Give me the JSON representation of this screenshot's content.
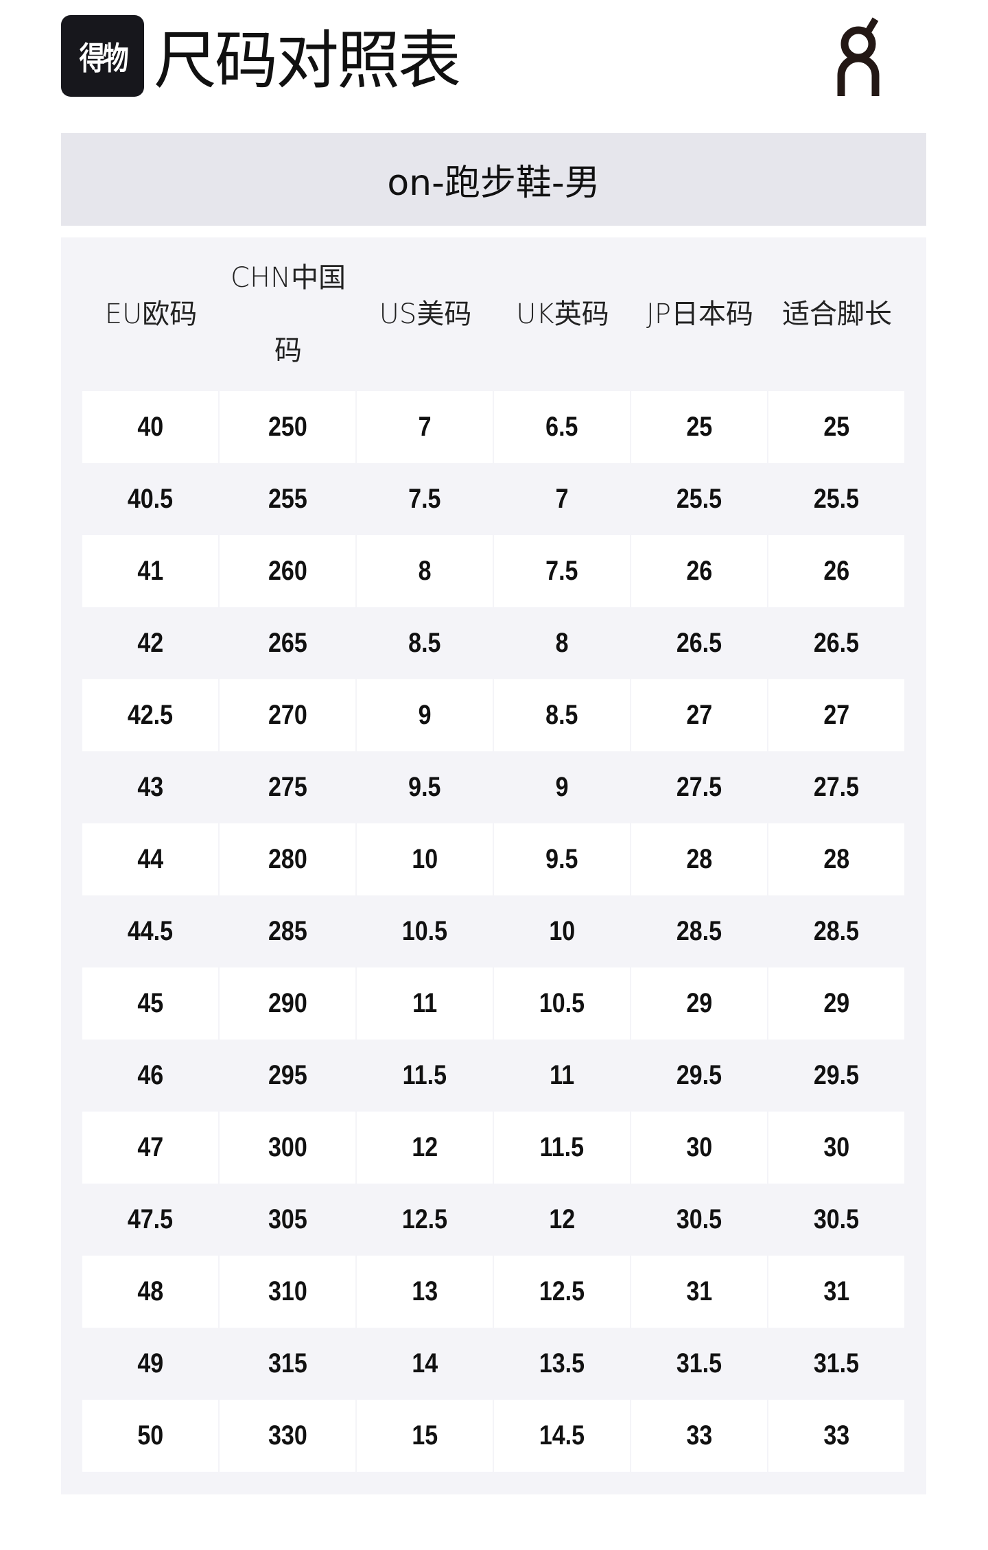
{
  "header": {
    "brand_logo_text": "得物",
    "title": "尺码对照表",
    "partner_logo_text": "on"
  },
  "subtitle": "on-跑步鞋-男",
  "colors": {
    "title_bar": "#e6e6ec",
    "panel": "#f4f4f8",
    "row_highlight": "#ffffff",
    "logo_bg": "#17171c"
  },
  "table": {
    "columns": [
      "EU欧码",
      "CHN中国码",
      "US美码",
      "UK英码",
      "JP日本码",
      "适合脚长"
    ],
    "rows": [
      [
        "40",
        "250",
        "7",
        "6.5",
        "25",
        "25"
      ],
      [
        "40.5",
        "255",
        "7.5",
        "7",
        "25.5",
        "25.5"
      ],
      [
        "41",
        "260",
        "8",
        "7.5",
        "26",
        "26"
      ],
      [
        "42",
        "265",
        "8.5",
        "8",
        "26.5",
        "26.5"
      ],
      [
        "42.5",
        "270",
        "9",
        "8.5",
        "27",
        "27"
      ],
      [
        "43",
        "275",
        "9.5",
        "9",
        "27.5",
        "27.5"
      ],
      [
        "44",
        "280",
        "10",
        "9.5",
        "28",
        "28"
      ],
      [
        "44.5",
        "285",
        "10.5",
        "10",
        "28.5",
        "28.5"
      ],
      [
        "45",
        "290",
        "11",
        "10.5",
        "29",
        "29"
      ],
      [
        "46",
        "295",
        "11.5",
        "11",
        "29.5",
        "29.5"
      ],
      [
        "47",
        "300",
        "12",
        "11.5",
        "30",
        "30"
      ],
      [
        "47.5",
        "305",
        "12.5",
        "12",
        "30.5",
        "30.5"
      ],
      [
        "48",
        "310",
        "13",
        "12.5",
        "31",
        "31"
      ],
      [
        "49",
        "315",
        "14",
        "13.5",
        "31.5",
        "31.5"
      ],
      [
        "50",
        "330",
        "15",
        "14.5",
        "33",
        "33"
      ]
    ]
  }
}
